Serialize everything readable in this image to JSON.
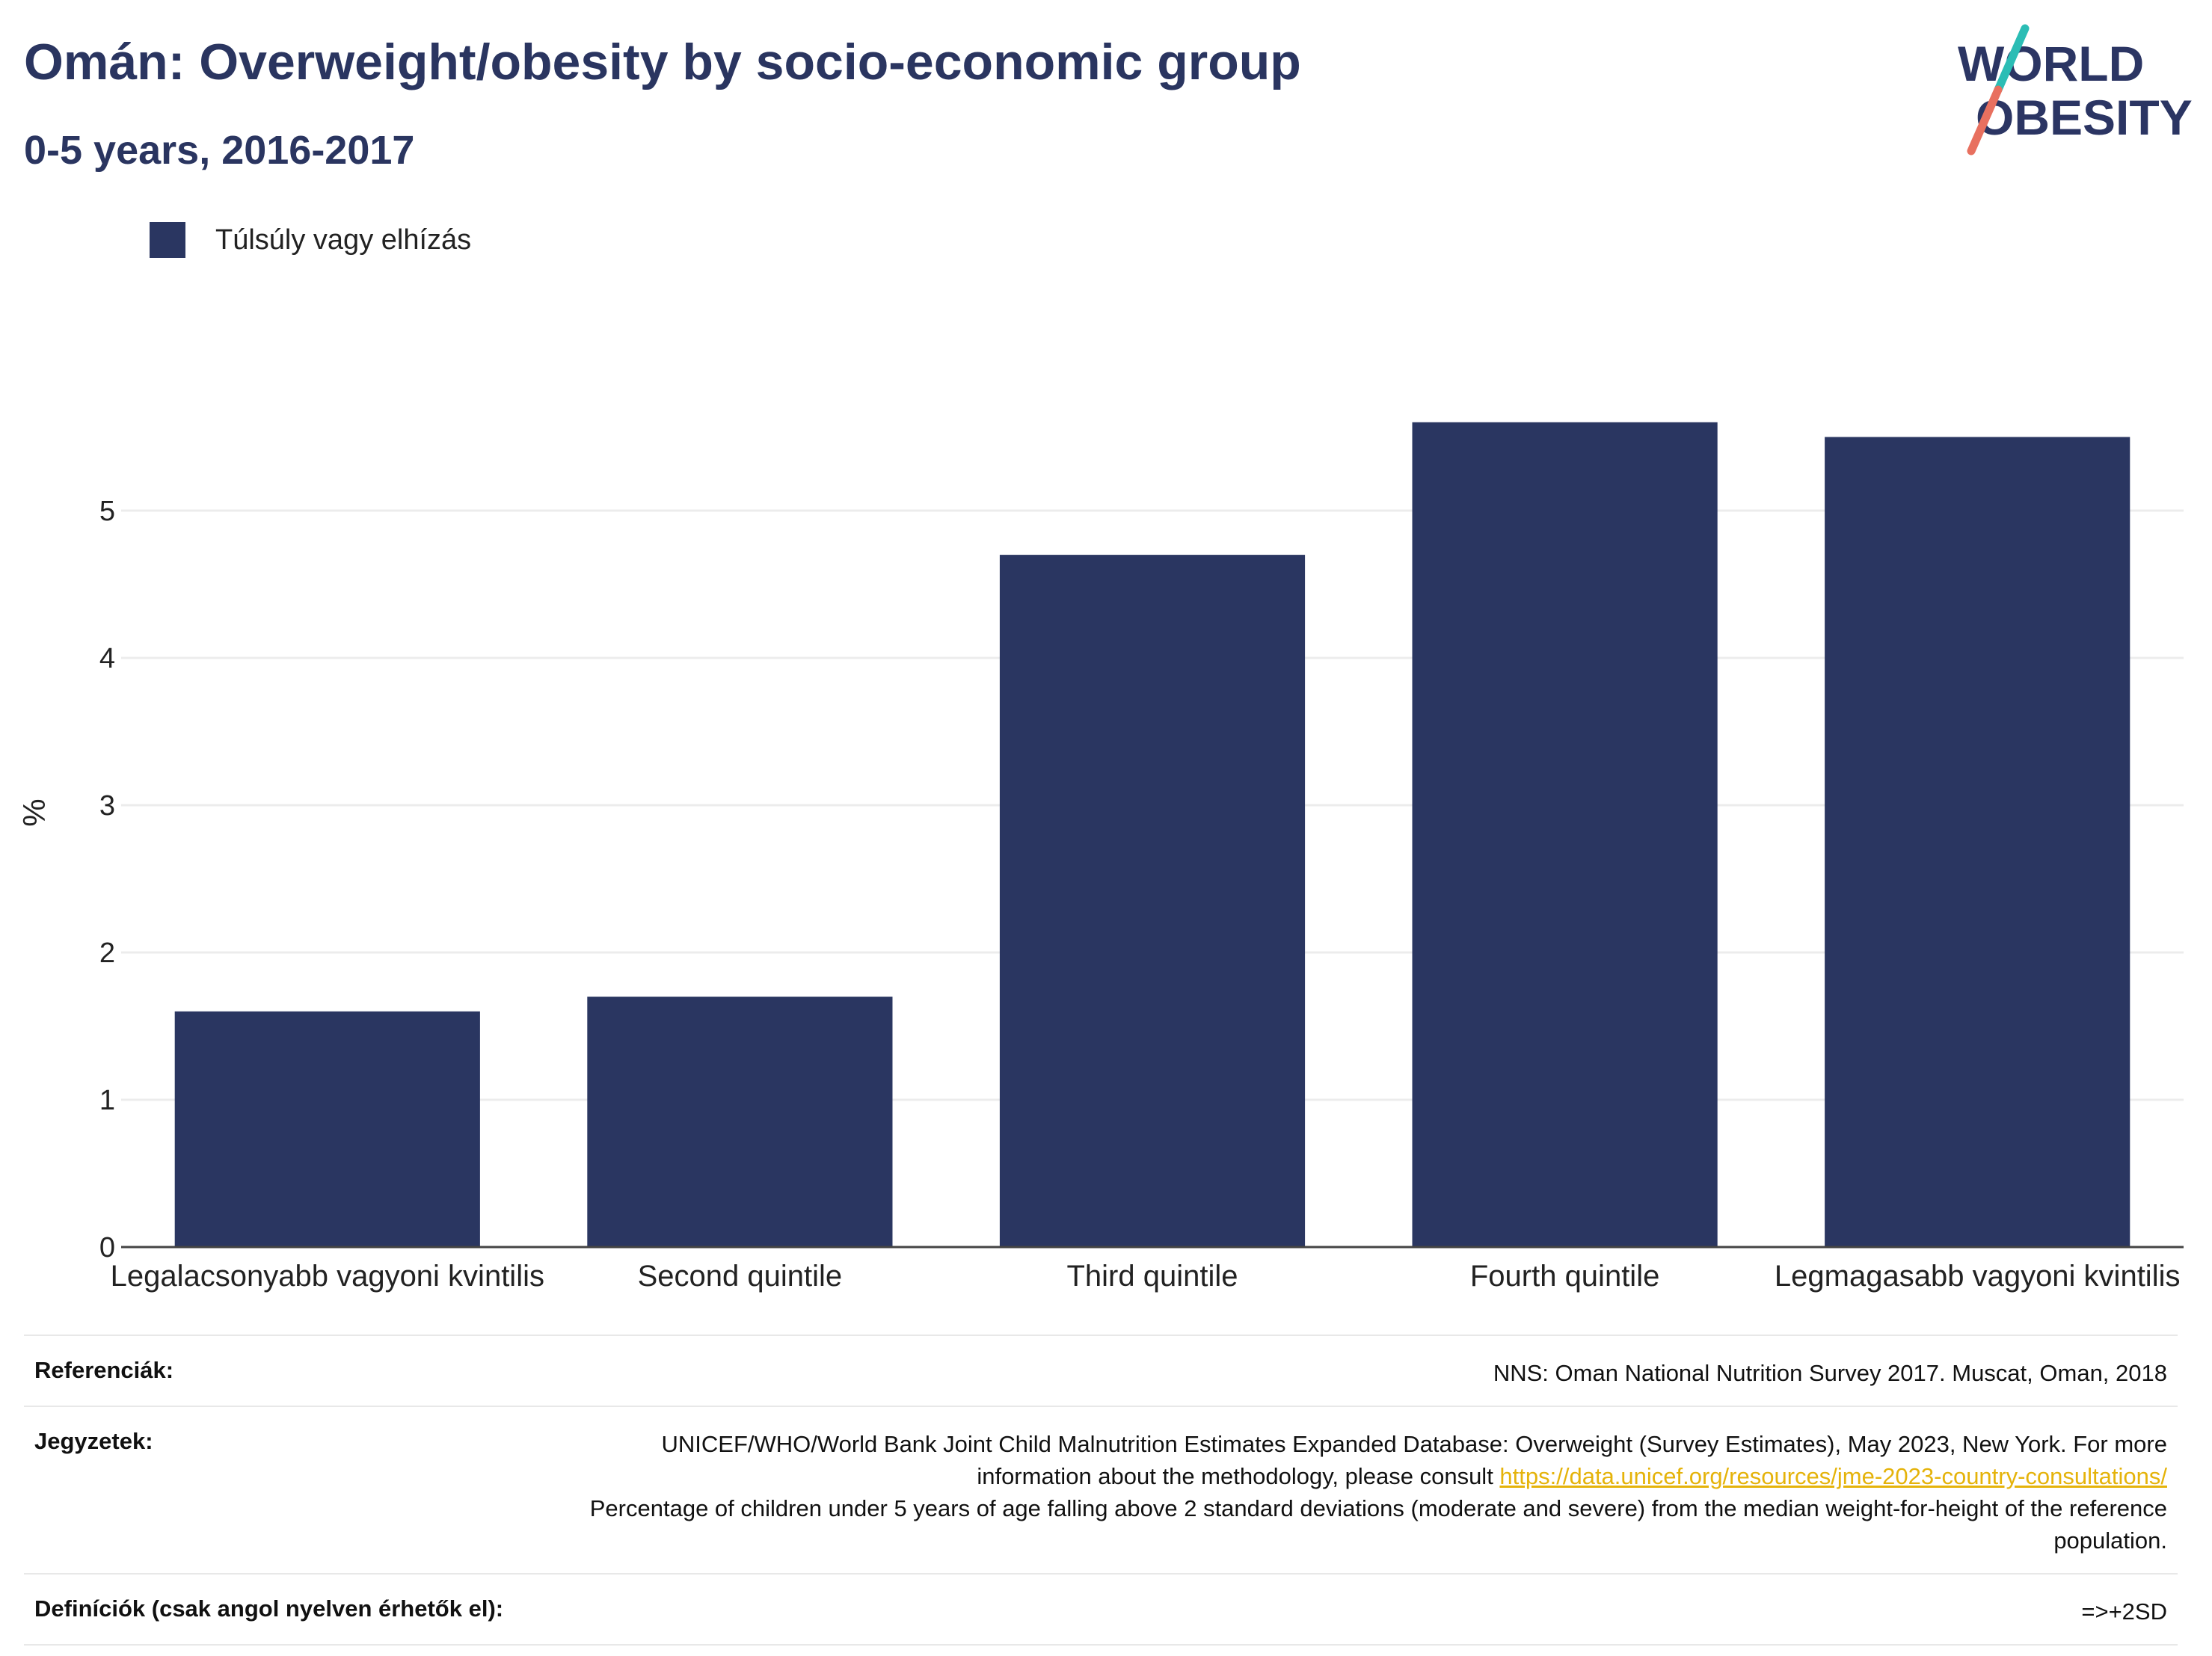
{
  "title": "Omán: Overweight/obesity by socio-economic group",
  "subtitle": "0-5 years, 2016-2017",
  "logo": {
    "line1": "WORLD",
    "line2": "OBESITY"
  },
  "colors": {
    "bar": "#2a3661",
    "title": "#2a3560",
    "grid": "#ececec",
    "axis": "#444444",
    "link": "#e5b30a",
    "logo_text": "#2b3563",
    "logo_teal": "#2bbdb5",
    "logo_coral": "#e8705f"
  },
  "chart_data": {
    "type": "bar",
    "categories": [
      "Legalacsonyabb vagyoni kvintilis",
      "Second quintile",
      "Third quintile",
      "Fourth quintile",
      "Legmagasabb vagyoni kvintilis"
    ],
    "series": [
      {
        "name": "Túlsúly vagy elhízás",
        "values": [
          1.6,
          1.7,
          4.7,
          5.6,
          5.5
        ]
      }
    ],
    "ylabel": "%",
    "xlabel": "",
    "ylim": [
      0,
      6
    ],
    "yticks": [
      0,
      1,
      2,
      3,
      4,
      5
    ],
    "grid": true,
    "legend": "top-left"
  },
  "footer": {
    "references_label": "Referenciák:",
    "references_value": "NNS: Oman National Nutrition Survey 2017. Muscat, Oman, 2018",
    "notes_label": "Jegyzetek:",
    "notes_text1": "UNICEF/WHO/World Bank Joint Child Malnutrition Estimates Expanded Database: Overweight (Survey Estimates), May 2023, New York. For more information about the methodology, please consult ",
    "notes_link": "https://data.unicef.org/resources/jme-2023-country-consultations/",
    "notes_text2": "Percentage of children under 5 years of age falling above 2 standard deviations (moderate and severe) from the median weight-for-height of the reference population.",
    "definitions_label": "Definíciók (csak angol nyelven érhetők el):",
    "definitions_value": "=>+2SD"
  }
}
